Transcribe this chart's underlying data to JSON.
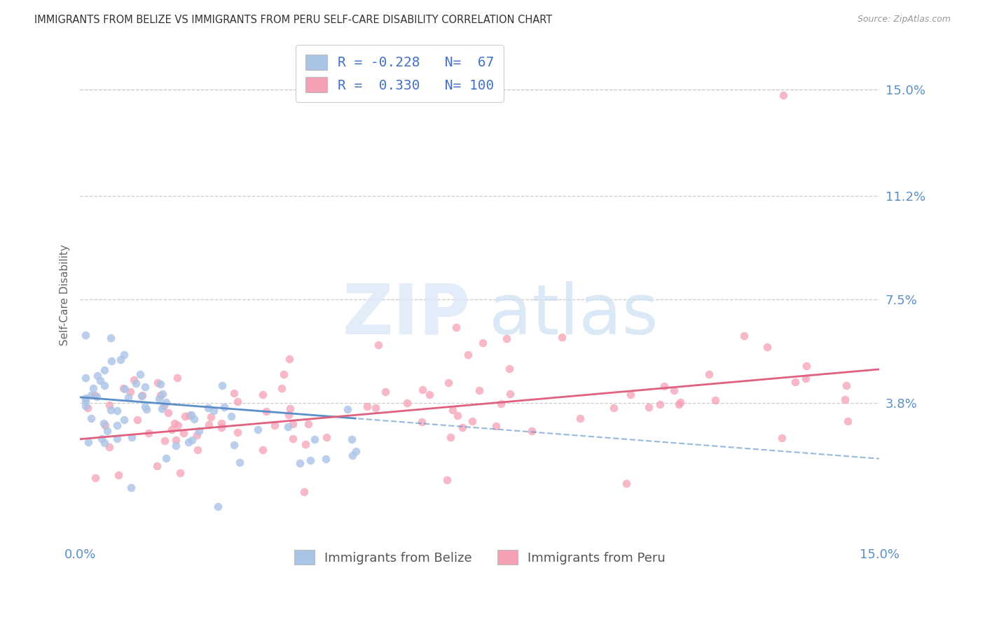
{
  "title": "IMMIGRANTS FROM BELIZE VS IMMIGRANTS FROM PERU SELF-CARE DISABILITY CORRELATION CHART",
  "source": "Source: ZipAtlas.com",
  "ylabel": "Self-Care Disability",
  "legend_label_belize": "Immigrants from Belize",
  "legend_label_peru": "Immigrants from Peru",
  "right_ytick_labels": [
    "15.0%",
    "11.2%",
    "7.5%",
    "3.8%"
  ],
  "right_ytick_values": [
    0.15,
    0.112,
    0.075,
    0.038
  ],
  "xmin": 0.0,
  "xmax": 0.15,
  "ymin": -0.012,
  "ymax": 0.165,
  "belize_R": -0.228,
  "belize_N": 67,
  "peru_R": 0.33,
  "peru_N": 100,
  "belize_color": "#aac4e8",
  "peru_color": "#f5a0b5",
  "belize_line_color": "#5b8fc9",
  "peru_line_color": "#e06080",
  "belize_line_start_y": 0.04,
  "belize_line_end_y": 0.018,
  "peru_line_start_y": 0.025,
  "peru_line_end_y": 0.05,
  "watermark_zip_color": "#ddeaf8",
  "watermark_atlas_color": "#cce0f5"
}
